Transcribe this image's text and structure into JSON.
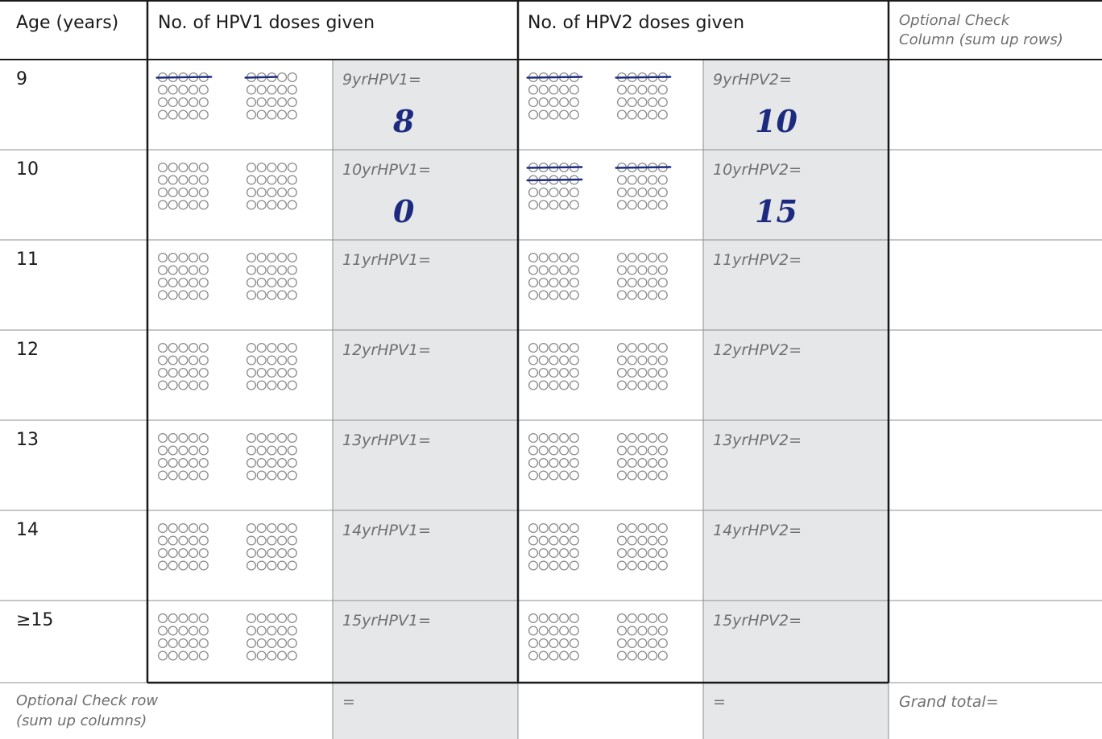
{
  "header": {
    "age": "Age (years)",
    "hpv1": "No. of HPV1 doses given",
    "hpv2": "No. of HPV2 doses given",
    "check_col_line1": "Optional Check",
    "check_col_line2": "Column (sum up rows)"
  },
  "rows": [
    {
      "age": "9",
      "hpv1_label": "9yrHPV1=",
      "hpv1_value": "8",
      "hpv2_label": "9yrHPV2=",
      "hpv2_value": "10",
      "hpv1_marked": 8,
      "hpv2_marked": 10
    },
    {
      "age": "10",
      "hpv1_label": "10yrHPV1=",
      "hpv1_value": "0",
      "hpv2_label": "10yrHPV2=",
      "hpv2_value": "15",
      "hpv1_marked": 0,
      "hpv2_marked": 15
    },
    {
      "age": "11",
      "hpv1_label": "11yrHPV1=",
      "hpv1_value": "",
      "hpv2_label": "11yrHPV2=",
      "hpv2_value": "",
      "hpv1_marked": 0,
      "hpv2_marked": 0
    },
    {
      "age": "12",
      "hpv1_label": "12yrHPV1=",
      "hpv1_value": "",
      "hpv2_label": "12yrHPV2=",
      "hpv2_value": "",
      "hpv1_marked": 0,
      "hpv2_marked": 0
    },
    {
      "age": "13",
      "hpv1_label": "13yrHPV1=",
      "hpv1_value": "",
      "hpv2_label": "13yrHPV2=",
      "hpv2_value": "",
      "hpv1_marked": 0,
      "hpv2_marked": 0
    },
    {
      "age": "14",
      "hpv1_label": "14yrHPV1=",
      "hpv1_value": "",
      "hpv2_label": "14yrHPV2=",
      "hpv2_value": "",
      "hpv1_marked": 0,
      "hpv2_marked": 0
    },
    {
      "age": "≥15",
      "hpv1_label": "15yrHPV1=",
      "hpv1_value": "",
      "hpv2_label": "15yrHPV2=",
      "hpv2_value": "",
      "hpv1_marked": 0,
      "hpv2_marked": 0
    }
  ],
  "footer": {
    "check_row_line1": "Optional Check row",
    "check_row_line2": "(sum up columns)",
    "hpv1_total": "=",
    "hpv2_total": "=",
    "grand_total": "Grand total="
  },
  "colors": {
    "shade": "#e6e7e9",
    "grid": "#8c8c8c",
    "thick": "#1a1a1a",
    "circle": "#8a8a8a",
    "ink": "#1c2b80"
  }
}
